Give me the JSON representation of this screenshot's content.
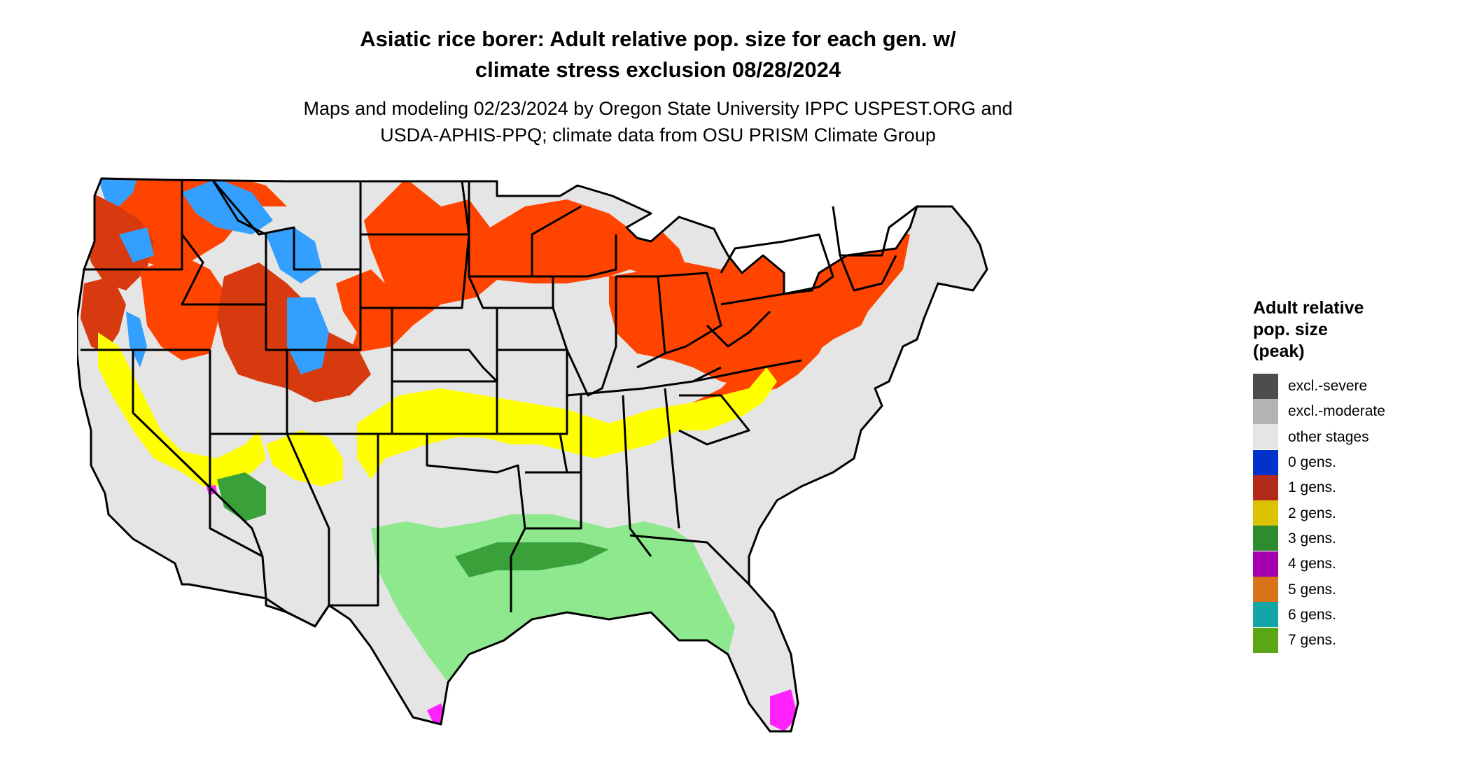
{
  "title_line1": "Asiatic rice borer: Adult relative pop. size for each gen. w/",
  "title_line2": "climate stress exclusion 08/28/2024",
  "subtitle_line1": "Maps and modeling 02/23/2024 by Oregon State University IPPC USPEST.ORG and",
  "subtitle_line2": "USDA-APHIS-PPQ; climate data from OSU PRISM Climate Group",
  "legend": {
    "title_line1": "Adult relative",
    "title_line2": "pop. size",
    "title_line3": "(peak)",
    "items": [
      {
        "label": "excl.-severe",
        "color": "#4d4d4d"
      },
      {
        "label": "excl.-moderate",
        "color": "#b3b3b3"
      },
      {
        "label": "other stages",
        "color": "#e5e5e5"
      },
      {
        "label": "0 gens.",
        "color": "#0033cc"
      },
      {
        "label": "1 gens.",
        "color": "#b22a1a"
      },
      {
        "label": "2 gens.",
        "color": "#dcc200"
      },
      {
        "label": "3 gens.",
        "color": "#2e8b2e"
      },
      {
        "label": "4 gens.",
        "color": "#a500b0"
      },
      {
        "label": "5 gens.",
        "color": "#d9731a"
      },
      {
        "label": "6 gens.",
        "color": "#12a6a6"
      },
      {
        "label": "7 gens.",
        "color": "#5aa614"
      }
    ]
  },
  "map_colors": {
    "land": "#e5e5e5",
    "gen1_light": "#ff4400",
    "gen1_dark": "#d83a10",
    "gen0_light": "#33a0ff",
    "gen2_light": "#ffff00",
    "gen3_light": "#8ee88e",
    "gen3_dark": "#3aa03a",
    "gen4_light": "#ff22ff",
    "border": "#000000"
  }
}
